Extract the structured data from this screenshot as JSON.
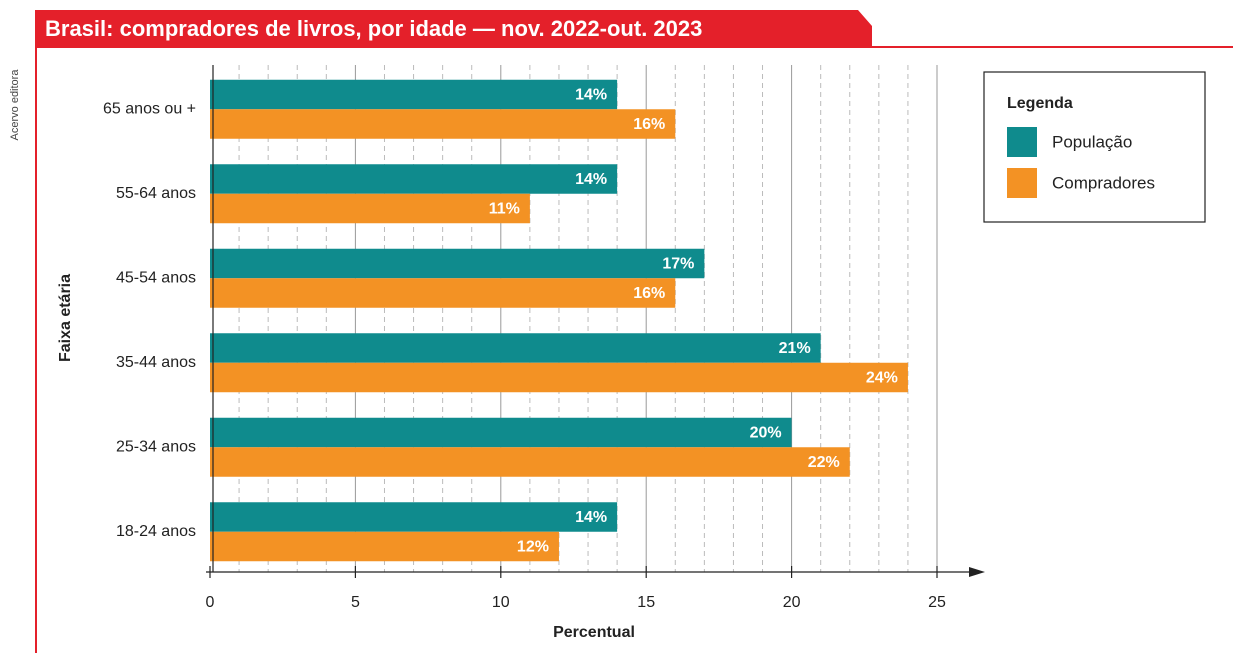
{
  "chart_data": {
    "type": "hbar",
    "title": "Brasil: compradores de livros, por idade — nov. 2022-out. 2023",
    "credit": "Acervo editora",
    "xlabel": "Percentual",
    "ylabel": "Faixa etária",
    "legend_title": "Legenda",
    "legend": "upper right",
    "categories": [
      "65 anos ou +",
      "55-64 anos",
      "45-54 anos",
      "35-44 anos",
      "25-34 anos",
      "18-24 anos"
    ],
    "series": [
      {
        "name": "População",
        "color": "#0f8b8d",
        "values": [
          14,
          14,
          17,
          21,
          20,
          14
        ],
        "value_labels": [
          "14%",
          "14%",
          "17%",
          "21%",
          "20%",
          "14%"
        ]
      },
      {
        "name": "Compradores",
        "color": "#f39224",
        "values": [
          16,
          11,
          16,
          24,
          22,
          12
        ],
        "value_labels": [
          "16%",
          "11%",
          "16%",
          "24%",
          "22%",
          "12%"
        ]
      }
    ],
    "xlim": [
      0,
      25
    ],
    "xticks": [
      0,
      5,
      10,
      15,
      20,
      25
    ],
    "grid": true,
    "minor_grid": true
  }
}
